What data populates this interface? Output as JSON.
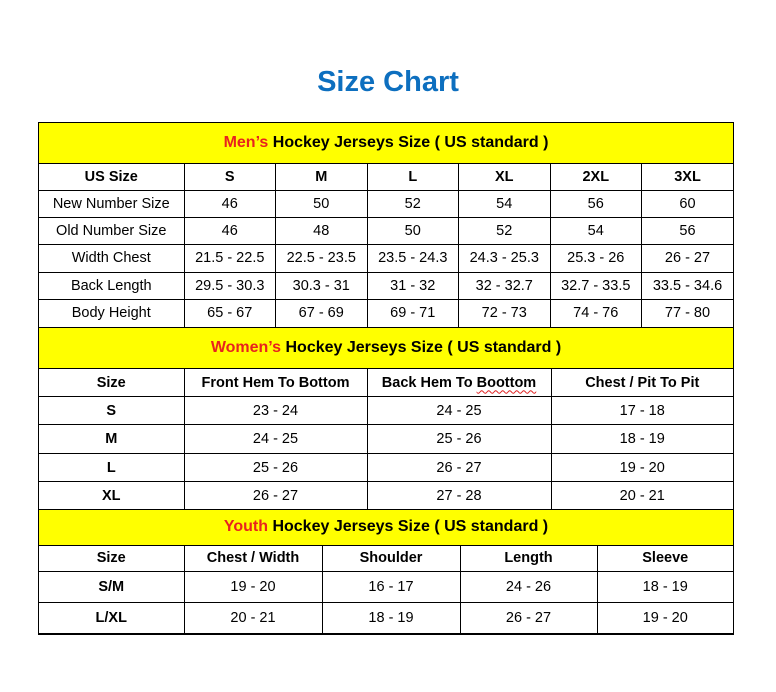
{
  "title": "Size Chart",
  "colors": {
    "title": "#0d6fbf",
    "section_bg": "#ffff00",
    "section_accent": "#e8231e"
  },
  "men": {
    "heading_accent": "Men’s",
    "heading_rest": " Hockey Jerseys Size ( US standard )",
    "headers": [
      "US Size",
      "S",
      "M",
      "L",
      "XL",
      "2XL",
      "3XL"
    ],
    "rows": [
      [
        "New Number Size",
        "46",
        "50",
        "52",
        "54",
        "56",
        "60"
      ],
      [
        "Old Number Size",
        "46",
        "48",
        "50",
        "52",
        "54",
        "56"
      ],
      [
        "Width Chest",
        "21.5 - 22.5",
        "22.5 - 23.5",
        "23.5 - 24.3",
        "24.3 - 25.3",
        "25.3 - 26",
        "26 - 27"
      ],
      [
        "Back Length",
        "29.5 - 30.3",
        "30.3 - 31",
        "31 - 32",
        "32 - 32.7",
        "32.7 - 33.5",
        "33.5 - 34.6"
      ],
      [
        "Body Height",
        "65 - 67",
        "67 - 69",
        "69 - 71",
        "72 - 73",
        "74 - 76",
        "77 - 80"
      ]
    ]
  },
  "women": {
    "heading_accent": "Women’s",
    "heading_rest": " Hockey Jerseys Size ( US standard )",
    "headers": [
      "Size",
      "Front Hem To Bottom",
      "Back Hem To ",
      "Chest / Pit To Pit"
    ],
    "header_misspelled": "Boottom",
    "rows": [
      [
        "S",
        "23 - 24",
        "24 - 25",
        "17 - 18"
      ],
      [
        "M",
        "24 - 25",
        "25 - 26",
        "18 - 19"
      ],
      [
        "L",
        "25 - 26",
        "26 - 27",
        "19 - 20"
      ],
      [
        "XL",
        "26 - 27",
        "27 - 28",
        "20 - 21"
      ]
    ]
  },
  "youth": {
    "heading_accent": "Youth",
    "heading_rest": " Hockey Jerseys Size ( US standard )",
    "headers": [
      "Size",
      "Chest / Width",
      "Shoulder",
      "Length",
      "Sleeve"
    ],
    "rows": [
      [
        "S/M",
        "19 - 20",
        "16 - 17",
        "24 - 26",
        "18 - 19"
      ],
      [
        "L/XL",
        "20 - 21",
        "18 - 19",
        "26 - 27",
        "19 - 20"
      ]
    ]
  }
}
